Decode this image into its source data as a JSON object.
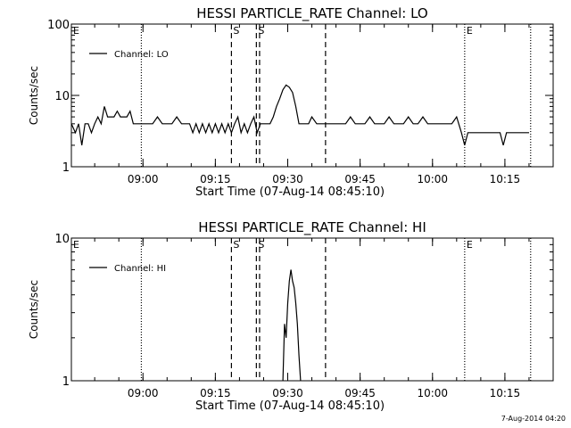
{
  "footer": {
    "timestamp": "7-Aug-2014 04:20"
  },
  "chart_data": [
    {
      "type": "line",
      "title": "HESSI PARTICLE_RATE Channel: LO",
      "xlabel": "Start Time (07-Aug-14 08:45:10)",
      "ylabel": "Counts/sec",
      "y_scale": "log",
      "ylim": [
        1,
        100
      ],
      "yticks": [
        {
          "value": 1,
          "label": "1"
        },
        {
          "value": 10,
          "label": "10"
        },
        {
          "value": 100,
          "label": "100"
        }
      ],
      "xlim": [
        "08:45:10",
        "10:25:00"
      ],
      "xticks": [
        {
          "time": "09:00",
          "label": "09:00"
        },
        {
          "time": "09:15",
          "label": "09:15"
        },
        {
          "time": "09:30",
          "label": "09:30"
        },
        {
          "time": "09:45",
          "label": "09:45"
        },
        {
          "time": "10:00",
          "label": "10:00"
        },
        {
          "time": "10:15",
          "label": "10:15"
        }
      ],
      "legend": {
        "placement": "top-left",
        "entries": [
          "Channel: LO"
        ]
      },
      "grid": false,
      "vertical_markers": [
        {
          "time": "08:45:10",
          "style": "none",
          "label": "E"
        },
        {
          "time": "08:59:40",
          "style": "dotted",
          "label": ""
        },
        {
          "time": "09:18:20",
          "style": "dashed",
          "label": "S"
        },
        {
          "time": "09:23:30",
          "style": "dashed",
          "label": "S"
        },
        {
          "time": "09:24:10",
          "style": "dashed",
          "label": ""
        },
        {
          "time": "09:37:50",
          "style": "dashed",
          "label": ""
        },
        {
          "time": "10:06:40",
          "style": "dotted",
          "label": "E"
        },
        {
          "time": "10:20:20",
          "style": "dotted",
          "label": ""
        }
      ],
      "series": [
        {
          "name": "Channel: LO",
          "x": [
            "08:45:10",
            "08:46:00",
            "08:46:40",
            "08:47:20",
            "08:48:00",
            "08:48:40",
            "08:49:20",
            "08:50:00",
            "08:50:40",
            "08:51:20",
            "08:52:00",
            "08:52:40",
            "08:53:20",
            "08:54:00",
            "08:54:40",
            "08:55:20",
            "08:56:00",
            "08:56:40",
            "08:57:20",
            "08:58:00",
            "08:58:40",
            "08:59:20",
            "09:00:00",
            "09:01:00",
            "09:02:00",
            "09:03:00",
            "09:04:00",
            "09:05:00",
            "09:06:00",
            "09:07:00",
            "09:08:00",
            "09:09:00",
            "09:09:40",
            "09:10:20",
            "09:11:00",
            "09:11:40",
            "09:12:20",
            "09:13:00",
            "09:13:40",
            "09:14:20",
            "09:15:00",
            "09:15:40",
            "09:16:20",
            "09:17:00",
            "09:17:40",
            "09:18:20",
            "09:19:00",
            "09:19:40",
            "09:20:20",
            "09:21:00",
            "09:21:40",
            "09:22:20",
            "09:23:00",
            "09:23:40",
            "09:24:20",
            "09:25:00",
            "09:25:40",
            "09:26:20",
            "09:27:00",
            "09:27:40",
            "09:28:20",
            "09:29:00",
            "09:29:40",
            "09:30:20",
            "09:31:00",
            "09:31:40",
            "09:32:20",
            "09:33:00",
            "09:33:40",
            "09:34:20",
            "09:35:00",
            "09:36:00",
            "09:37:00",
            "09:38:00",
            "09:39:00",
            "09:40:00",
            "09:41:00",
            "09:42:00",
            "09:43:00",
            "09:44:00",
            "09:45:00",
            "09:46:00",
            "09:47:00",
            "09:48:00",
            "09:49:00",
            "09:50:00",
            "09:51:00",
            "09:52:00",
            "09:53:00",
            "09:54:00",
            "09:55:00",
            "09:56:00",
            "09:57:00",
            "09:58:00",
            "09:59:00",
            "10:00:00",
            "10:01:00",
            "10:02:00",
            "10:03:00",
            "10:04:00",
            "10:05:00",
            "10:06:00",
            "10:06:40",
            "10:07:20",
            "10:08:00",
            "10:09:00",
            "10:10:00",
            "10:11:00",
            "10:12:00",
            "10:13:00",
            "10:14:00",
            "10:14:40",
            "10:15:20",
            "10:16:00",
            "10:17:00",
            "10:18:00",
            "10:19:00",
            "10:20:00"
          ],
          "y": [
            4,
            3,
            4,
            2,
            4,
            4,
            3,
            4,
            5,
            4,
            7,
            5,
            5,
            5,
            6,
            5,
            5,
            5,
            6,
            4,
            4,
            4,
            4,
            4,
            4,
            5,
            4,
            4,
            4,
            5,
            4,
            4,
            4,
            3,
            4,
            3,
            4,
            3,
            4,
            3,
            4,
            3,
            4,
            3,
            4,
            3,
            4,
            5,
            3,
            4,
            3,
            4,
            5,
            3,
            4,
            4,
            4,
            4,
            5,
            7,
            9,
            12,
            14,
            13,
            11,
            7,
            4,
            4,
            4,
            4,
            5,
            4,
            4,
            4,
            4,
            4,
            4,
            4,
            5,
            4,
            4,
            4,
            5,
            4,
            4,
            4,
            5,
            4,
            4,
            4,
            5,
            4,
            4,
            5,
            4,
            4,
            4,
            4,
            4,
            4,
            5,
            3,
            2,
            3,
            3,
            3,
            3,
            3,
            3,
            3,
            3,
            2,
            3,
            3,
            3,
            3,
            3,
            3
          ]
        }
      ]
    },
    {
      "type": "line",
      "title": "HESSI PARTICLE_RATE Channel: HI",
      "xlabel": "Start Time (07-Aug-14 08:45:10)",
      "ylabel": "Counts/sec",
      "y_scale": "log",
      "ylim": [
        1,
        10
      ],
      "yticks": [
        {
          "value": 1,
          "label": "1"
        },
        {
          "value": 10,
          "label": "10"
        }
      ],
      "xlim": [
        "08:45:10",
        "10:25:00"
      ],
      "xticks": [
        {
          "time": "09:00",
          "label": "09:00"
        },
        {
          "time": "09:15",
          "label": "09:15"
        },
        {
          "time": "09:30",
          "label": "09:30"
        },
        {
          "time": "09:45",
          "label": "09:45"
        },
        {
          "time": "10:00",
          "label": "10:00"
        },
        {
          "time": "10:15",
          "label": "10:15"
        }
      ],
      "legend": {
        "placement": "top-left",
        "entries": [
          "Channel: HI"
        ]
      },
      "grid": false,
      "vertical_markers": [
        {
          "time": "08:45:10",
          "style": "none",
          "label": "E"
        },
        {
          "time": "08:59:40",
          "style": "dotted",
          "label": ""
        },
        {
          "time": "09:18:20",
          "style": "dashed",
          "label": "S"
        },
        {
          "time": "09:23:30",
          "style": "dashed",
          "label": "S"
        },
        {
          "time": "09:24:10",
          "style": "dashed",
          "label": ""
        },
        {
          "time": "09:37:50",
          "style": "dashed",
          "label": ""
        },
        {
          "time": "10:06:40",
          "style": "dotted",
          "label": "E"
        },
        {
          "time": "10:20:20",
          "style": "dotted",
          "label": ""
        }
      ],
      "series": [
        {
          "name": "Channel: HI",
          "x": [
            "09:29:00",
            "09:29:20",
            "09:29:40",
            "09:30:00",
            "09:30:20",
            "09:30:40",
            "09:31:00",
            "09:31:20",
            "09:31:40",
            "09:32:00",
            "09:32:20",
            "09:32:40"
          ],
          "y": [
            1,
            2.5,
            2,
            3.5,
            5,
            6,
            5,
            4.5,
            3.5,
            2.5,
            1.5,
            1
          ]
        }
      ]
    }
  ]
}
